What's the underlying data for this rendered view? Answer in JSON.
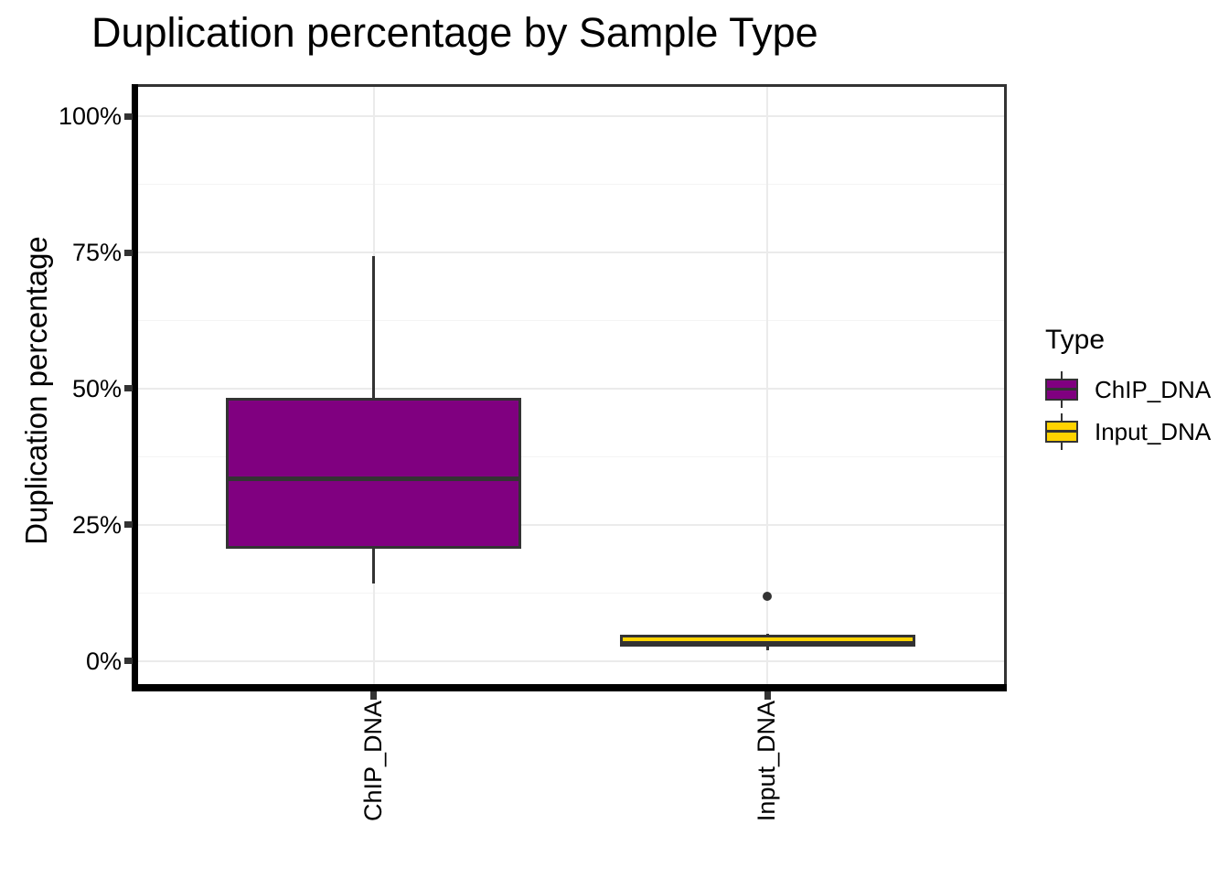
{
  "title": "Duplication percentage by Sample Type",
  "colors": {
    "chip_fill": "#800080",
    "input_fill": "#FFD300",
    "box_border": "#333333",
    "grid_major": "#EBEBEB",
    "grid_minor": "#F4F4F4",
    "axis_line": "#000000",
    "tick_mark": "#333333",
    "background": "#FFFFFF"
  },
  "chart_data": {
    "type": "boxplot",
    "title": "Duplication percentage by Sample Type",
    "xlabel": "",
    "ylabel": "Duplication percentage",
    "categories": [
      "ChIP_DNA",
      "Input_DNA"
    ],
    "y_axis": {
      "ticks": [
        0,
        25,
        50,
        75,
        100
      ],
      "tick_labels": [
        "0%",
        "25%",
        "50%",
        "75%",
        "100%"
      ],
      "minor_ticks": [
        12.5,
        37.5,
        62.5,
        87.5
      ],
      "range": [
        -4.9,
        105.4
      ],
      "grid": true
    },
    "series": [
      {
        "name": "ChIP_DNA",
        "fill": "#800080",
        "whisker_low": 14.3,
        "q1": 20.6,
        "median": 33.4,
        "q3": 48.3,
        "whisker_high": 74.4,
        "outliers": []
      },
      {
        "name": "Input_DNA",
        "fill": "#FFD300",
        "whisker_low": 2.0,
        "q1": 2.7,
        "median": 3.3,
        "q3": 4.8,
        "whisker_high": 5.0,
        "outliers": [
          11.9
        ]
      }
    ],
    "legend": {
      "title": "Type",
      "position": "right",
      "items": [
        {
          "label": "ChIP_DNA",
          "color": "#800080"
        },
        {
          "label": "Input_DNA",
          "color": "#FFD300"
        }
      ]
    }
  }
}
